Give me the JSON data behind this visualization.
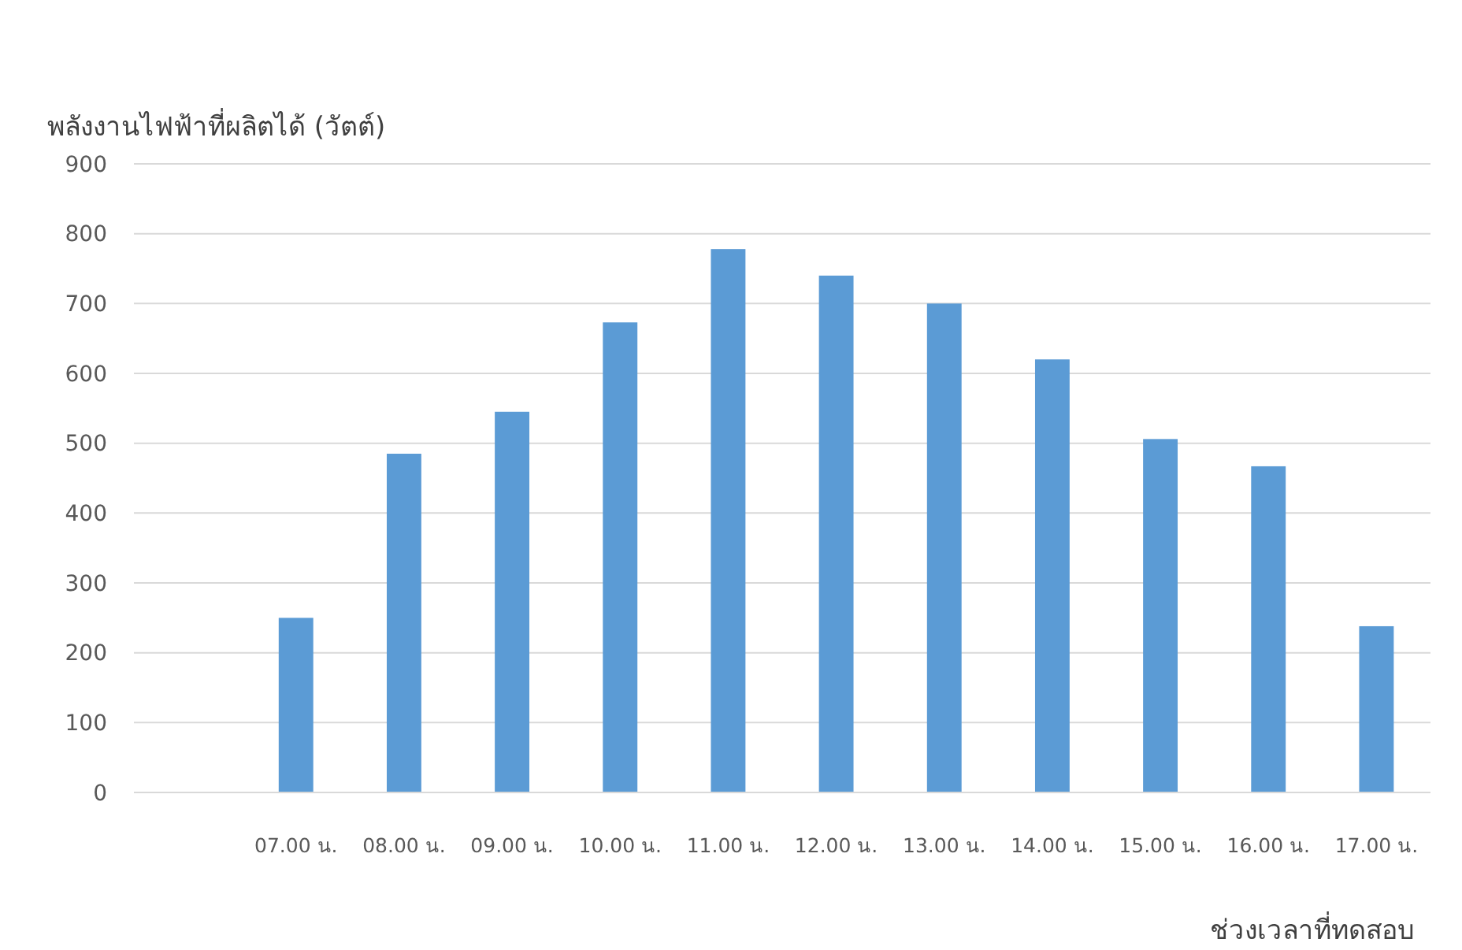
{
  "chart_data": {
    "type": "bar",
    "title": "พลังงานไฟฟ้าที่ผลิตได้ (วัตต์)",
    "xlabel": "ช่วงเวลาที่ทดสอบ",
    "categories": [
      null,
      "07.00 น.",
      "08.00 น.",
      "09.00 น.",
      "10.00 น.",
      "11.00 น.",
      "12.00 น.",
      "13.00 น.",
      "14.00 น.",
      "15.00 น.",
      "16.00 น.",
      "17.00 น."
    ],
    "values": [
      null,
      250,
      485,
      545,
      673,
      778,
      740,
      700,
      620,
      506,
      467,
      238
    ],
    "color": "#5b9bd5",
    "ylim": [
      0,
      900
    ],
    "yticks": [
      0,
      100,
      200,
      300,
      400,
      500,
      600,
      700,
      800,
      900
    ],
    "grid": "y"
  }
}
